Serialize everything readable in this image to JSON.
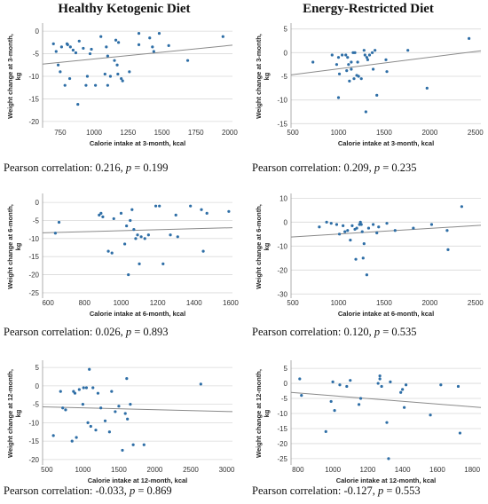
{
  "titles": {
    "left": "Healthy Ketogenic Diet",
    "right": "Energy-Restricted Diet"
  },
  "chart_data": [
    {
      "type": "scatter",
      "xlabel": "Calorie intake at 3-month, kcal",
      "ylabel": "Weight change at 3-month, kg",
      "xlim": [
        620,
        2020
      ],
      "ylim": [
        -21,
        1
      ],
      "xticks": [
        750,
        1000,
        1250,
        1500,
        1750,
        2000
      ],
      "yticks": [
        0,
        -5,
        -10,
        -15,
        -20
      ],
      "fit": [
        [
          620,
          -7.3
        ],
        [
          2020,
          -3.1
        ]
      ],
      "points": [
        [
          700,
          -2.8
        ],
        [
          720,
          -4.5
        ],
        [
          735,
          -7.5
        ],
        [
          750,
          -9
        ],
        [
          760,
          -3.5
        ],
        [
          785,
          -12
        ],
        [
          800,
          -2.8
        ],
        [
          805,
          -3
        ],
        [
          820,
          -10.5
        ],
        [
          825,
          -3.5
        ],
        [
          845,
          -4.2
        ],
        [
          865,
          -4.8
        ],
        [
          880,
          -16.2
        ],
        [
          890,
          -2.2
        ],
        [
          920,
          -3.8
        ],
        [
          940,
          -12
        ],
        [
          950,
          -10
        ],
        [
          970,
          -5
        ],
        [
          980,
          -4
        ],
        [
          1010,
          -12
        ],
        [
          1050,
          -1.2
        ],
        [
          1080,
          -9.5
        ],
        [
          1090,
          -3.5
        ],
        [
          1100,
          -12
        ],
        [
          1100,
          -5.5
        ],
        [
          1120,
          -10
        ],
        [
          1150,
          -6.5
        ],
        [
          1160,
          -2
        ],
        [
          1170,
          -7.5
        ],
        [
          1175,
          -9.5
        ],
        [
          1180,
          -2.5
        ],
        [
          1200,
          -10.5
        ],
        [
          1210,
          -11
        ],
        [
          1260,
          -9
        ],
        [
          1330,
          -0.5
        ],
        [
          1330,
          -3
        ],
        [
          1410,
          -1.5
        ],
        [
          1430,
          -3.5
        ],
        [
          1440,
          -4.5
        ],
        [
          1480,
          -0.5
        ],
        [
          1550,
          -3.2
        ],
        [
          1690,
          -6.5
        ],
        [
          1950,
          -1.2
        ]
      ],
      "caption_label": "Pearson correlation: ",
      "r": "0.216",
      "p": "0.199"
    },
    {
      "type": "scatter",
      "xlabel": "Calorie intake at 3-month, kcal",
      "ylabel": "Weight change at 3-month, kg",
      "xlim": [
        480,
        2560
      ],
      "ylim": [
        -15.5,
        5.5
      ],
      "xticks": [
        500,
        1000,
        1500,
        2000,
        2500
      ],
      "yticks": [
        5,
        0,
        -5,
        -10,
        -15
      ],
      "fit": [
        [
          480,
          -4.7
        ],
        [
          2560,
          0.4
        ]
      ],
      "points": [
        [
          720,
          -2
        ],
        [
          930,
          -0.5
        ],
        [
          980,
          -2.5
        ],
        [
          1000,
          -1
        ],
        [
          1000,
          -9.5
        ],
        [
          1010,
          -4.5
        ],
        [
          1040,
          -0.5
        ],
        [
          1080,
          -0.5
        ],
        [
          1090,
          -3.8
        ],
        [
          1100,
          -1
        ],
        [
          1110,
          -2.5
        ],
        [
          1120,
          -6
        ],
        [
          1140,
          -2
        ],
        [
          1140,
          -3.5
        ],
        [
          1160,
          0
        ],
        [
          1170,
          -5.5
        ],
        [
          1180,
          0
        ],
        [
          1200,
          -4.8
        ],
        [
          1210,
          -2
        ],
        [
          1220,
          -5
        ],
        [
          1250,
          -5.5
        ],
        [
          1280,
          0.5
        ],
        [
          1290,
          -0.5
        ],
        [
          1300,
          -12.5
        ],
        [
          1310,
          -1
        ],
        [
          1320,
          -1.5
        ],
        [
          1340,
          -0.5
        ],
        [
          1370,
          0
        ],
        [
          1380,
          -3.5
        ],
        [
          1400,
          0.5
        ],
        [
          1420,
          -9
        ],
        [
          1520,
          -1.5
        ],
        [
          1530,
          -4
        ],
        [
          1760,
          0.5
        ],
        [
          1970,
          -7.5
        ],
        [
          2430,
          3
        ]
      ],
      "caption_label": "Pearson correlation: ",
      "r": "0.209",
      "p": "0.235"
    },
    {
      "type": "scatter",
      "xlabel": "Calorie intake at 6-month, kcal",
      "ylabel": "Weight change at 6-month, kg",
      "xlim": [
        570,
        1610
      ],
      "ylim": [
        -26,
        1.5
      ],
      "xticks": [
        600,
        800,
        1000,
        1200,
        1400,
        1600
      ],
      "yticks": [
        0,
        -5,
        -10,
        -15,
        -20,
        -25
      ],
      "fit": [
        [
          570,
          -8.4
        ],
        [
          1610,
          -7
        ]
      ],
      "points": [
        [
          640,
          -8.5
        ],
        [
          660,
          -5.5
        ],
        [
          880,
          -3.5
        ],
        [
          890,
          -3
        ],
        [
          900,
          -4
        ],
        [
          930,
          -13.5
        ],
        [
          950,
          -14
        ],
        [
          960,
          -4.5
        ],
        [
          1000,
          -3
        ],
        [
          1020,
          -11.5
        ],
        [
          1030,
          -6.5
        ],
        [
          1040,
          -20
        ],
        [
          1050,
          -5
        ],
        [
          1060,
          -2
        ],
        [
          1070,
          -7.5
        ],
        [
          1080,
          -10
        ],
        [
          1090,
          -9
        ],
        [
          1100,
          -17
        ],
        [
          1110,
          -9.5
        ],
        [
          1130,
          -10
        ],
        [
          1150,
          -9
        ],
        [
          1190,
          -1
        ],
        [
          1210,
          -1
        ],
        [
          1230,
          -17
        ],
        [
          1270,
          -9
        ],
        [
          1300,
          -3.5
        ],
        [
          1310,
          -9.5
        ],
        [
          1380,
          -1
        ],
        [
          1440,
          -2
        ],
        [
          1450,
          -13.5
        ],
        [
          1470,
          -3
        ],
        [
          1590,
          -2.5
        ]
      ],
      "caption_label": "Pearson correlation: ",
      "r": "0.026",
      "p": "0.893"
    },
    {
      "type": "scatter",
      "xlabel": "Calorie intake at 6-month, kcal",
      "ylabel": "Weight change at 6-month, kg",
      "xlim": [
        480,
        2560
      ],
      "ylim": [
        -31,
        10.5
      ],
      "xticks": [
        500,
        1000,
        1500,
        2000,
        2500
      ],
      "yticks": [
        10,
        0,
        -10,
        -20,
        -30
      ],
      "fit": [
        [
          480,
          -6.2
        ],
        [
          2560,
          -1.3
        ]
      ],
      "points": [
        [
          790,
          -2
        ],
        [
          870,
          0
        ],
        [
          920,
          -0.5
        ],
        [
          980,
          -1
        ],
        [
          1010,
          -5
        ],
        [
          1050,
          -1.5
        ],
        [
          1070,
          -4
        ],
        [
          1100,
          -3.5
        ],
        [
          1130,
          -7.5
        ],
        [
          1150,
          -1.5
        ],
        [
          1180,
          -3
        ],
        [
          1190,
          -15.5
        ],
        [
          1200,
          -2.5
        ],
        [
          1230,
          -1
        ],
        [
          1240,
          0
        ],
        [
          1250,
          -1
        ],
        [
          1260,
          -4
        ],
        [
          1270,
          -15
        ],
        [
          1280,
          -9
        ],
        [
          1310,
          -22
        ],
        [
          1330,
          -2.5
        ],
        [
          1380,
          -1
        ],
        [
          1420,
          -4.5
        ],
        [
          1440,
          -2
        ],
        [
          1530,
          -0.5
        ],
        [
          1620,
          -3.5
        ],
        [
          1820,
          -2.5
        ],
        [
          2020,
          -1
        ],
        [
          2190,
          -3.5
        ],
        [
          2200,
          -11.5
        ],
        [
          2350,
          6.5
        ]
      ],
      "caption_label": "Pearson correlation: ",
      "r": "0.120",
      "p": "0.535"
    },
    {
      "type": "scatter",
      "xlabel": "Calorie intake at 12-month, kcal",
      "ylabel": "Weight change at 12-month, kg",
      "xlim": [
        440,
        3080
      ],
      "ylim": [
        -21,
        6
      ],
      "xticks": [
        500,
        1000,
        1500,
        2000,
        2500,
        3000
      ],
      "yticks": [
        5,
        0,
        -5,
        -10,
        -15,
        -20
      ],
      "fit": [
        [
          440,
          -5.7
        ],
        [
          3080,
          -7
        ]
      ],
      "points": [
        [
          590,
          -13.5
        ],
        [
          690,
          -1.5
        ],
        [
          720,
          -6
        ],
        [
          760,
          -6.5
        ],
        [
          850,
          -15
        ],
        [
          870,
          -1.5
        ],
        [
          890,
          -2
        ],
        [
          910,
          -14
        ],
        [
          950,
          -1
        ],
        [
          1000,
          -5
        ],
        [
          1010,
          -0.5
        ],
        [
          1050,
          -0.5
        ],
        [
          1070,
          -10
        ],
        [
          1090,
          4.5
        ],
        [
          1110,
          -11
        ],
        [
          1140,
          -0.5
        ],
        [
          1180,
          -12
        ],
        [
          1210,
          -2
        ],
        [
          1250,
          -6
        ],
        [
          1310,
          -9.5
        ],
        [
          1370,
          -12.5
        ],
        [
          1400,
          -1.5
        ],
        [
          1450,
          -7
        ],
        [
          1500,
          -5.5
        ],
        [
          1550,
          -17.5
        ],
        [
          1590,
          -7.5
        ],
        [
          1610,
          2
        ],
        [
          1620,
          -9
        ],
        [
          1660,
          -5
        ],
        [
          1700,
          -16
        ],
        [
          1850,
          -16
        ],
        [
          2640,
          0.5
        ]
      ],
      "caption_label": "Pearson correlation: ",
      "r": "-0.033",
      "p": "0.869"
    },
    {
      "type": "scatter",
      "xlabel": "Calorie intake at 12-month, kcal",
      "ylabel": "Weight change at 12-month, kg",
      "xlim": [
        760,
        1850
      ],
      "ylim": [
        -26.5,
        6.5
      ],
      "xticks": [
        800,
        1000,
        1200,
        1400,
        1600,
        1800
      ],
      "yticks": [
        5,
        0,
        -5,
        -10,
        -15,
        -20,
        -25
      ],
      "fit": [
        [
          760,
          -3
        ],
        [
          1850,
          -8
        ]
      ],
      "points": [
        [
          810,
          1.5
        ],
        [
          820,
          -4
        ],
        [
          960,
          -16
        ],
        [
          990,
          -6
        ],
        [
          1000,
          0.5
        ],
        [
          1010,
          -9
        ],
        [
          1040,
          -0.5
        ],
        [
          1080,
          -1
        ],
        [
          1100,
          1
        ],
        [
          1150,
          -7
        ],
        [
          1160,
          -5
        ],
        [
          1260,
          0
        ],
        [
          1270,
          1.5
        ],
        [
          1270,
          2.5
        ],
        [
          1280,
          -1
        ],
        [
          1310,
          -13
        ],
        [
          1320,
          -25
        ],
        [
          1330,
          0.5
        ],
        [
          1390,
          -3
        ],
        [
          1400,
          -2
        ],
        [
          1410,
          -8
        ],
        [
          1420,
          -0.5
        ],
        [
          1560,
          -10.5
        ],
        [
          1620,
          -0.5
        ],
        [
          1720,
          -1
        ],
        [
          1730,
          -16.5
        ]
      ],
      "caption_label": "Pearson correlation: ",
      "r": "-0.127",
      "p": "0.553"
    }
  ]
}
